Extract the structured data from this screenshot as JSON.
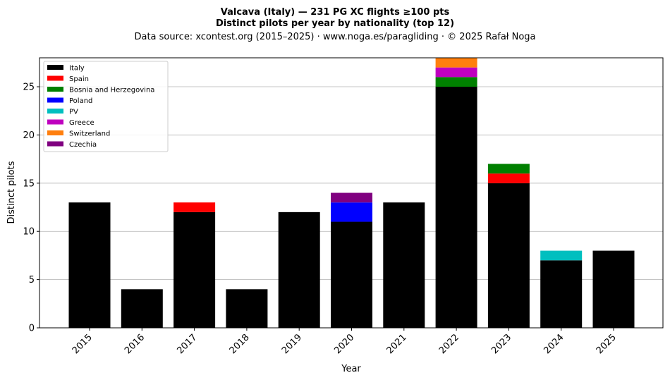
{
  "chart_data": {
    "type": "bar",
    "stacked": true,
    "title": "Valcava (Italy)  —  231 PG XC flights ≥100 pts",
    "subtitle": "Distinct pilots per year by nationality (top 12)",
    "source": "Data source: xcontest.org (2015–2025)  ·  www.noga.es/paragliding  ·  © 2025 Rafał Noga",
    "xlabel": "Year",
    "ylabel": "Distinct pilots",
    "ylim": [
      0,
      28
    ],
    "yticks": [
      0,
      5,
      10,
      15,
      20,
      25
    ],
    "grid": "horizontal",
    "legend_position": "top-left",
    "categories": [
      "2015",
      "2016",
      "2017",
      "2018",
      "2019",
      "2020",
      "2021",
      "2022",
      "2023",
      "2024",
      "2025"
    ],
    "series": [
      {
        "name": "Italy",
        "color": "#000000",
        "values": [
          13,
          4,
          12,
          4,
          12,
          11,
          13,
          25,
          15,
          7,
          8
        ]
      },
      {
        "name": "Spain",
        "color": "#ff0000",
        "values": [
          0,
          0,
          1,
          0,
          0,
          0,
          0,
          0,
          1,
          0,
          0
        ]
      },
      {
        "name": "Bosnia and Herzegovina",
        "color": "#008000",
        "values": [
          0,
          0,
          0,
          0,
          0,
          0,
          0,
          1,
          1,
          0,
          0
        ]
      },
      {
        "name": "Poland",
        "color": "#0000ff",
        "values": [
          0,
          0,
          0,
          0,
          0,
          2,
          0,
          0,
          0,
          0,
          0
        ]
      },
      {
        "name": "PV",
        "color": "#00bfbf",
        "values": [
          0,
          0,
          0,
          0,
          0,
          0,
          0,
          0,
          0,
          1,
          0
        ]
      },
      {
        "name": "Greece",
        "color": "#bf00bf",
        "values": [
          0,
          0,
          0,
          0,
          0,
          0,
          0,
          1,
          0,
          0,
          0
        ]
      },
      {
        "name": "Switzerland",
        "color": "#ff7f0e",
        "values": [
          0,
          0,
          0,
          0,
          0,
          0,
          0,
          1,
          0,
          0,
          0
        ]
      },
      {
        "name": "Czechia",
        "color": "#800080",
        "values": [
          0,
          0,
          0,
          0,
          0,
          1,
          0,
          0,
          0,
          0,
          0
        ]
      }
    ]
  }
}
